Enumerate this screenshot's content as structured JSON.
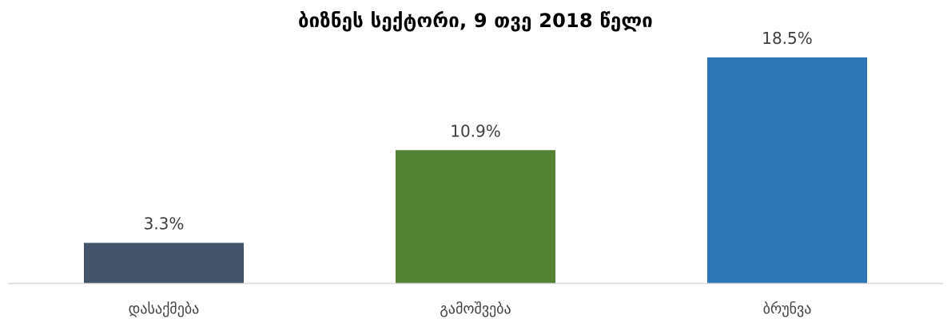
{
  "chart_data": {
    "type": "bar",
    "title": "ბიზნეს სექტორი, 9 თვე 2018 წელი",
    "categories": [
      "დასაქმება",
      "გამოშვება",
      "ბრუნვა"
    ],
    "values": [
      3.3,
      10.9,
      18.5
    ],
    "value_labels": [
      "3.3%",
      "10.9%",
      "18.5%"
    ],
    "bar_colors": [
      "#44546A",
      "#548235",
      "#2E75B6"
    ],
    "ylim": [
      0,
      18.5
    ],
    "grid": false,
    "legend": "none"
  }
}
